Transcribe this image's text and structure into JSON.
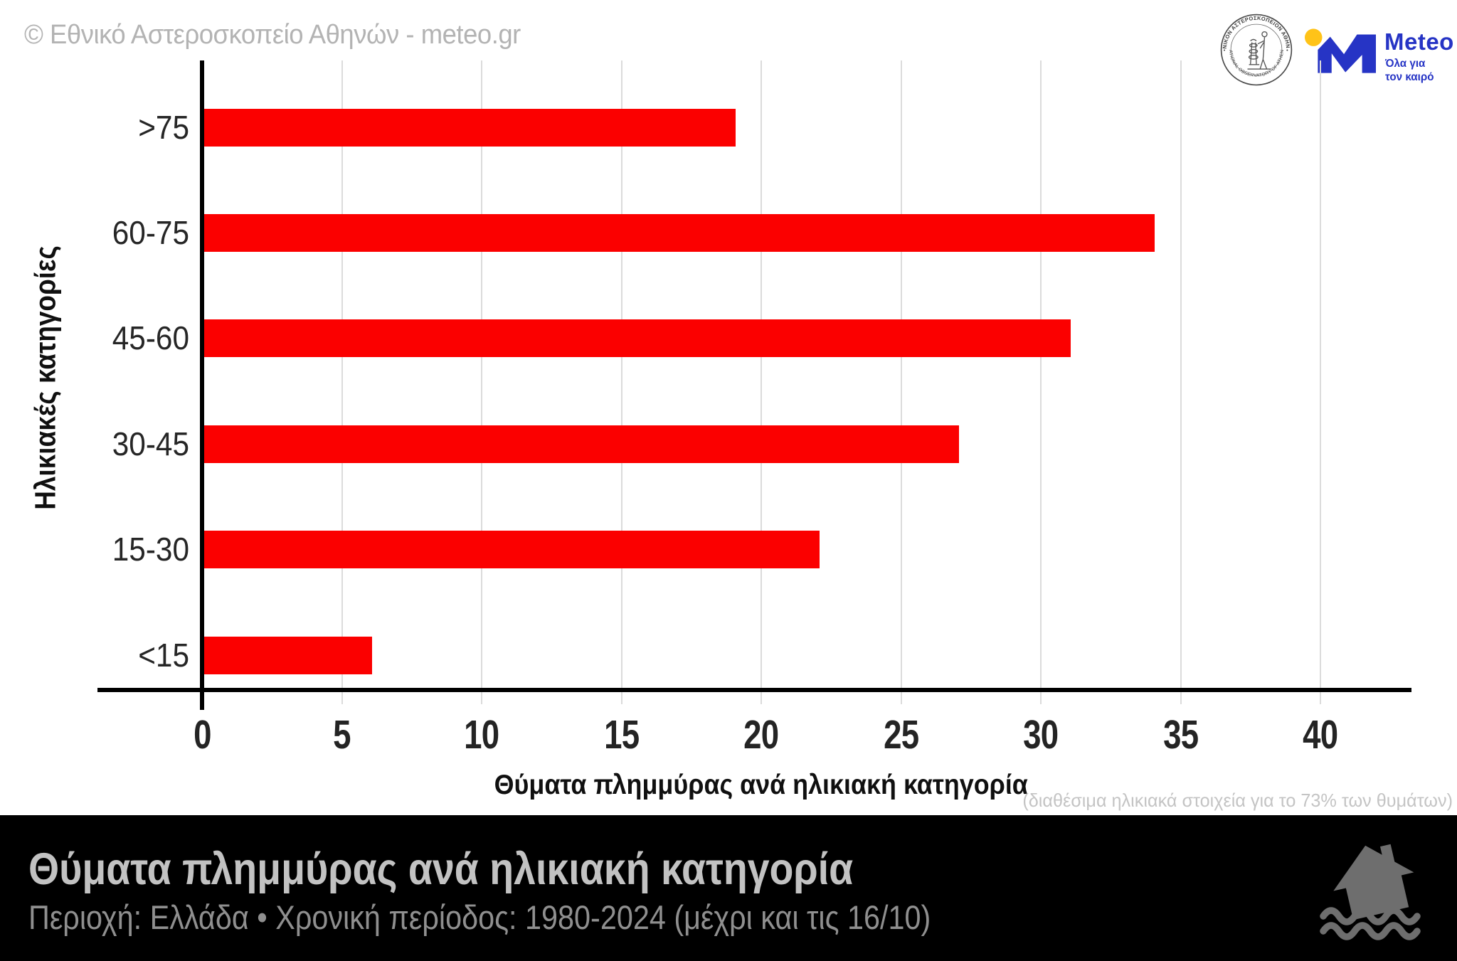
{
  "header": {
    "copyright": "© Εθνικό Αστεροσκοπείο Αθηνών - meteo.gr",
    "observatory_seal": {
      "top_text": "ΕΘΝΙΚΟΝ ΑΣΤΕΡΟΣΚΟΠΕΙΟΝ ΑΘΗΝΩΝ",
      "bottom_text": "NATIONAL OBSERVATORY OF ATHENS"
    },
    "meteo_logo": {
      "name": "Meteo",
      "tagline_line1": "Όλα για",
      "tagline_line2": "τον καιρό",
      "blue": "#2634c5",
      "yellow": "#ffc318"
    }
  },
  "chart_data": {
    "type": "bar",
    "orientation": "horizontal",
    "title": "Θύματα πλημμύρας ανά ηλικιακή κατηγορία",
    "categories": [
      ">75",
      "60-75",
      "45-60",
      "30-45",
      "15-30",
      "<15"
    ],
    "values": [
      19,
      34,
      31,
      27,
      22,
      6
    ],
    "xlabel": "Θύματα πλημμύρας ανά ηλικιακή κατηγορία",
    "ylabel": "Ηλικιακές κατηγορίες",
    "xlim": [
      0,
      40
    ],
    "xticks": [
      0,
      5,
      10,
      15,
      20,
      25,
      30,
      35,
      40
    ],
    "grid": true,
    "bar_color": "#fb0000",
    "gridline_color": "#dbdbdb",
    "note": "(διαθέσιμα ηλικιακά στοιχεία για το 73% των θυμάτων)"
  },
  "footer": {
    "title": "Θύματα πλημμύρας ανά ηλικιακή κατηγορία",
    "subtitle": "Περιοχή: Ελλάδα • Χρονική περίοδος: 1980-2024 (μέχρι και τις 16/10)",
    "icon": "flooded-house-icon"
  }
}
